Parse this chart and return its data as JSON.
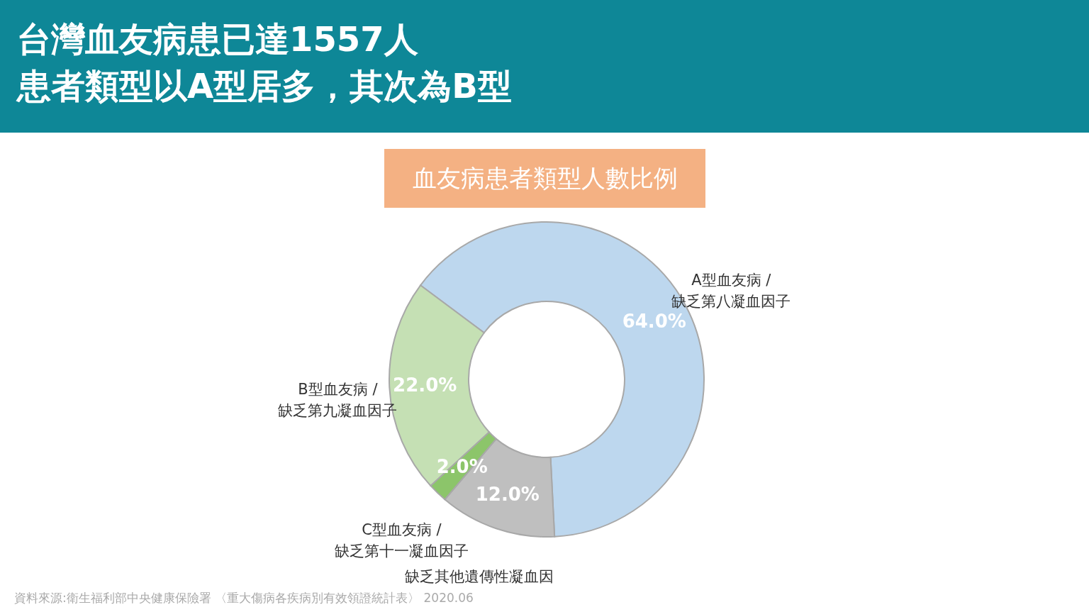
{
  "chart_data": {
    "type": "donut",
    "title": "台灣血友病患已達1557人",
    "subtitle": "患者類型以A型居多，其次為B型",
    "categories": [
      "A型血友病 /\n缺乏第八凝血因子",
      "缺乏其他遺傳性凝血因",
      "C型血友病 /\n缺乏第十一凝血因子",
      "B型血友病 /\n缺乏第九凝血因子"
    ],
    "values": [
      64,
      12,
      2,
      22
    ],
    "colors": [
      "#bdd7ee",
      "#bfbfbf",
      "#8cc56a",
      "#c5e0b4"
    ],
    "value_labels": [
      "64.0%",
      "12.0%",
      "2.0%",
      "22.0%"
    ],
    "legend": false,
    "annotations": [
      "血友病患者類型人數比例",
      "資料來源:衛生福利部中央健康保險署 〈重大傷病各疾病別有效領證統計表〉 2020.06"
    ]
  }
}
